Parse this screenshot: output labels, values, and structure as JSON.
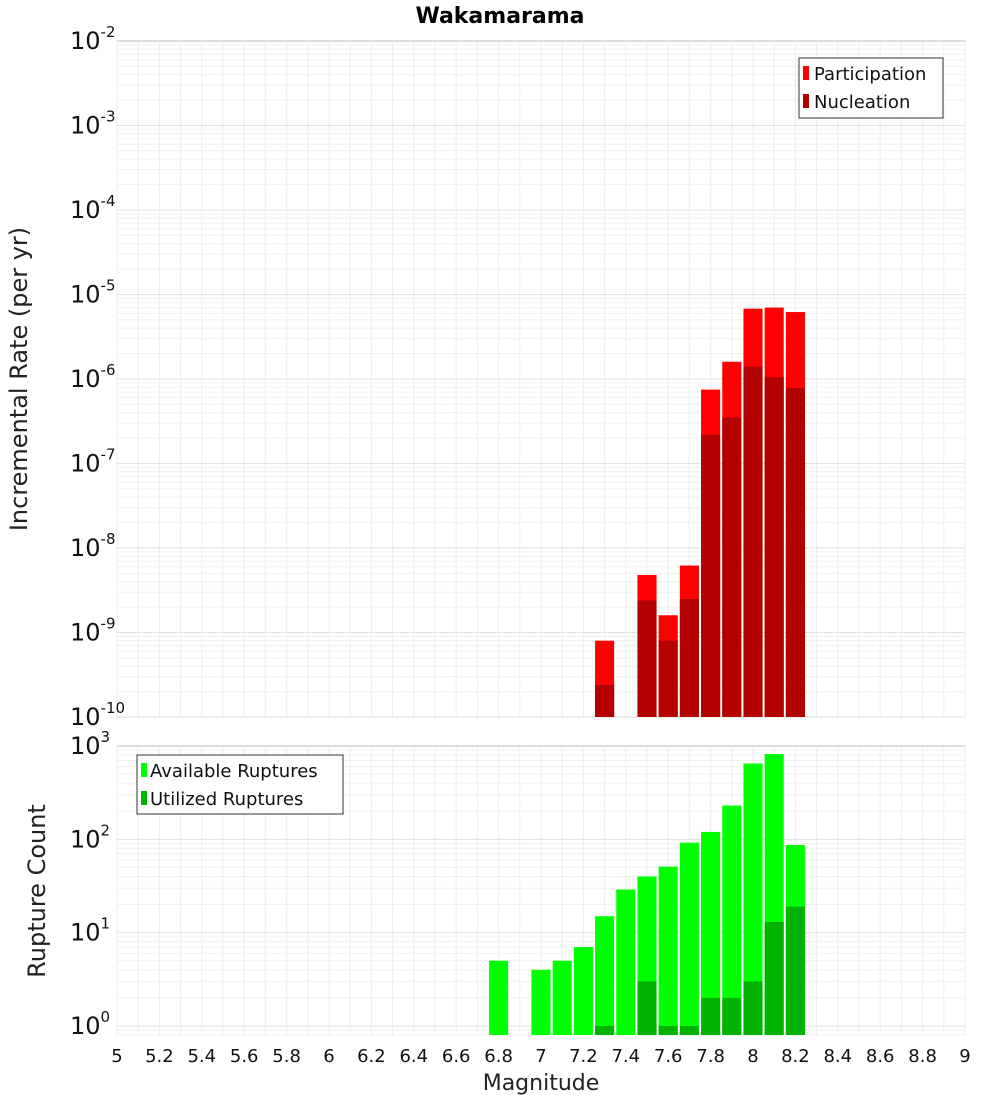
{
  "chart_data": [
    {
      "type": "bar",
      "title": "Wakamarama",
      "ylabel": "Incremental Rate (per yr)",
      "xlabel": "",
      "yscale": "log",
      "ylim": [
        1e-10,
        0.01
      ],
      "xlim": [
        5,
        9
      ],
      "grid": true,
      "legend_placement": "top-right",
      "bar_width": 0.09,
      "x": [
        7.3,
        7.5,
        7.6,
        7.7,
        7.8,
        7.9,
        8.0,
        8.1,
        8.2
      ],
      "series": [
        {
          "name": "Participation",
          "color": "#ff0000",
          "values": [
            8e-10,
            4.8e-09,
            1.6e-09,
            6.2e-09,
            7.5e-07,
            1.6e-06,
            6.8e-06,
            7e-06,
            6.2e-06
          ]
        },
        {
          "name": "Nucleation",
          "color": "#b30000",
          "values": [
            2.4e-10,
            2.4e-09,
            8e-10,
            2.5e-09,
            2.2e-07,
            3.5e-07,
            1.4e-06,
            1.05e-06,
            7.8e-07
          ]
        }
      ],
      "yticks": [
        {
          "base": "10",
          "exp": "-2"
        },
        {
          "base": "10",
          "exp": "-3"
        },
        {
          "base": "10",
          "exp": "-4"
        },
        {
          "base": "10",
          "exp": "-5"
        },
        {
          "base": "10",
          "exp": "-6"
        },
        {
          "base": "10",
          "exp": "-7"
        },
        {
          "base": "10",
          "exp": "-8"
        },
        {
          "base": "10",
          "exp": "-9"
        },
        {
          "base": "10",
          "exp": "-10"
        }
      ]
    },
    {
      "type": "bar",
      "title": "",
      "ylabel": "Rupture Count",
      "xlabel": "Magnitude",
      "yscale": "log",
      "ylim": [
        0.8,
        1000
      ],
      "xlim": [
        5,
        9
      ],
      "grid": true,
      "legend_placement": "top-left",
      "bar_width": 0.09,
      "x": [
        6.8,
        7.0,
        7.1,
        7.2,
        7.3,
        7.4,
        7.5,
        7.6,
        7.7,
        7.8,
        7.9,
        8.0,
        8.1,
        8.2
      ],
      "series": [
        {
          "name": "Available Ruptures",
          "color": "#00ff00",
          "values": [
            5,
            4,
            5,
            7,
            15,
            29,
            40,
            51,
            92,
            120,
            230,
            650,
            820,
            87
          ]
        },
        {
          "name": "Utilized Ruptures",
          "color": "#00b300",
          "values": [
            0,
            0,
            0,
            0,
            1,
            0,
            3,
            1,
            1,
            2,
            2,
            3,
            13,
            19
          ]
        }
      ],
      "yticks": [
        {
          "base": "10",
          "exp": "3"
        },
        {
          "base": "10",
          "exp": "2"
        },
        {
          "base": "10",
          "exp": "1"
        },
        {
          "base": "10",
          "exp": "0"
        }
      ],
      "xticks": [
        "5",
        "5.2",
        "5.4",
        "5.6",
        "5.8",
        "6",
        "6.2",
        "6.4",
        "6.6",
        "6.8",
        "7",
        "7.2",
        "7.4",
        "7.6",
        "7.8",
        "8",
        "8.2",
        "8.4",
        "8.6",
        "8.8",
        "9"
      ]
    }
  ]
}
